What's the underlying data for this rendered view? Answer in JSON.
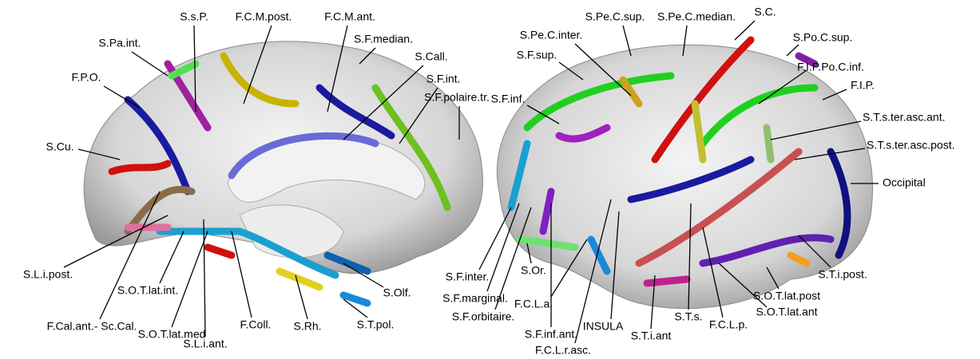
{
  "medial_labels": [
    "S.s.P.",
    "F.C.M.post.",
    "F.C.M.ant.",
    "S.Pa.int.",
    "S.F.median.",
    "S.Call.",
    "F.P.O.",
    "S.F.int.",
    "S.F.polaire.tr.",
    "S.Cu.",
    "S.L.i.post.",
    "F.Cal.ant.- Sc.Cal.",
    "S.O.T.lat.int.",
    "S.O.T.lat.med",
    "S.L.i.ant.",
    "F.Coll.",
    "S.Rh.",
    "S.T.pol.",
    "S.Olf."
  ],
  "lateral_labels": [
    "S.Pe.C.sup.",
    "S.Pe.C.median.",
    "S.C.",
    "S.Pe.C.inter.",
    "S.Po.C.sup.",
    "S.F.sup.",
    "F.I.P.Po.C.inf.",
    "F.I.P.",
    "S.F.inf.",
    "S.T.s.ter.asc.ant.",
    "S.T.s.ter.asc.post.",
    "Occipital",
    "S.F.inter.",
    "S.F.marginal.",
    "S.Or.",
    "S.F.orbitaire.",
    "F.C.L.a.",
    "S.F.inf.ant.",
    "INSULA",
    "F.C.L.r.asc.",
    "S.T.i.ant",
    "S.T.s.",
    "F.C.L.p.",
    "S.O.T.lat.ant",
    "S.O.T.lat.post",
    "S.T.i.post."
  ]
}
